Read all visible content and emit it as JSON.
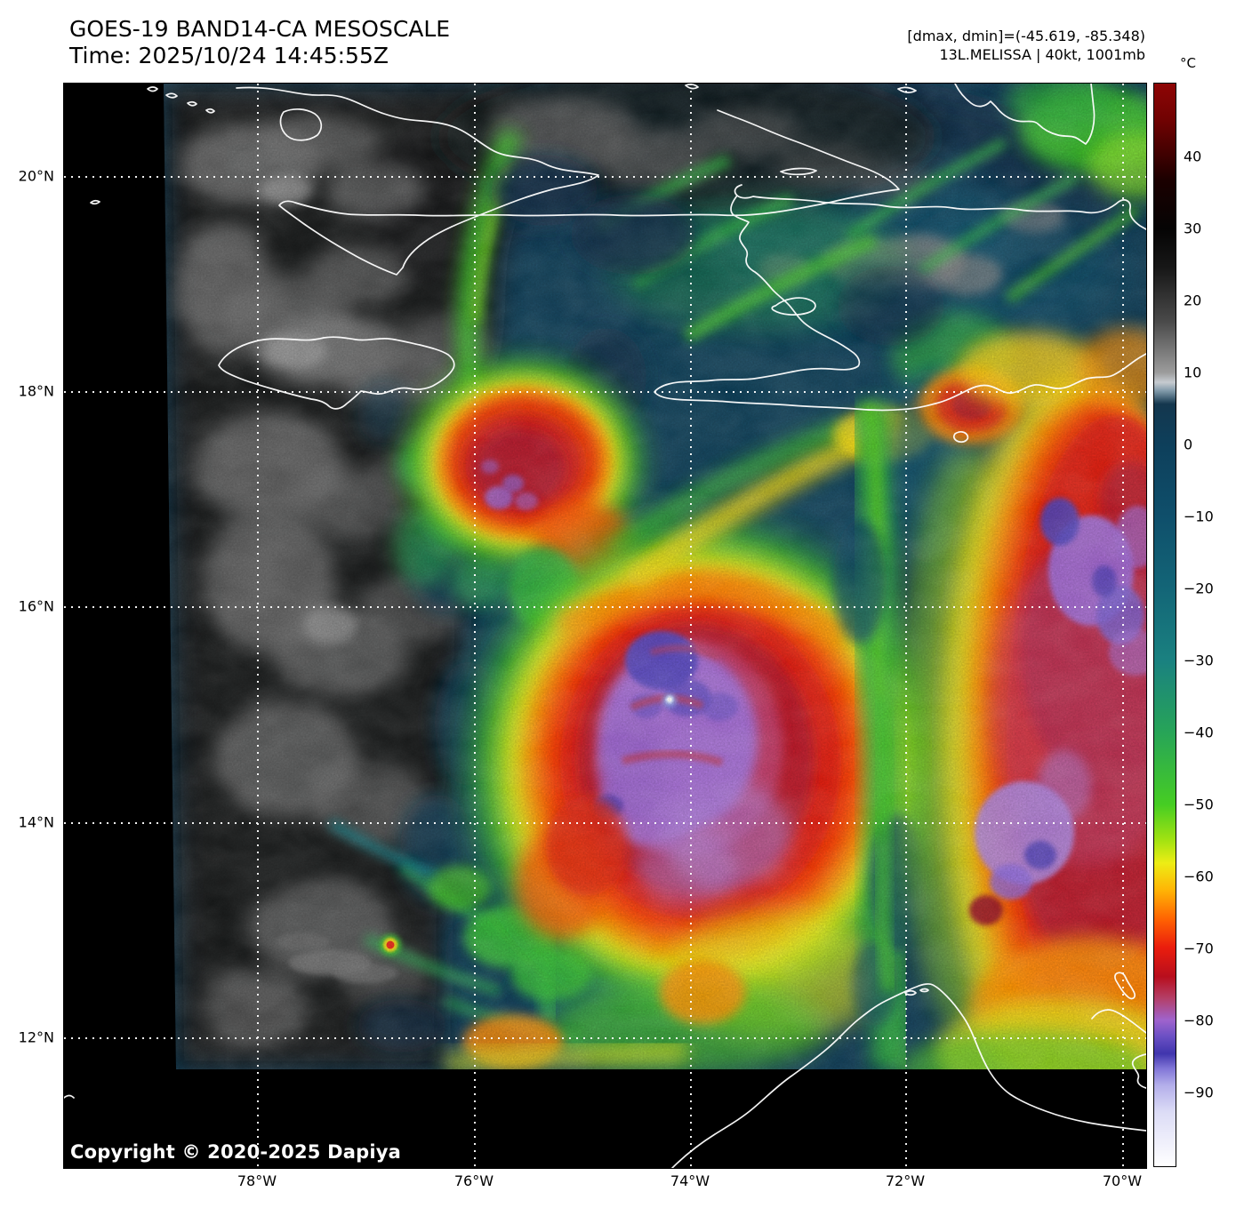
{
  "header": {
    "title_line1": "GOES-19 BAND14-CA MESOSCALE",
    "title_line2": "Time: 2025/10/24 14:45:55Z"
  },
  "info": {
    "dmax_dmin": "[dmax, dmin]=(-45.619, -85.348)",
    "storm_line": "13L.MELISSA | 40kt, 1001mb"
  },
  "colorbar": {
    "unit_label": "°C",
    "ticks": [
      {
        "label": "40",
        "top_pct": 6.8
      },
      {
        "label": "30",
        "top_pct": 13.44
      },
      {
        "label": "20",
        "top_pct": 20.08
      },
      {
        "label": "10",
        "top_pct": 26.72
      },
      {
        "label": "0",
        "top_pct": 33.36
      },
      {
        "label": "−10",
        "top_pct": 40.0
      },
      {
        "label": "−20",
        "top_pct": 46.64
      },
      {
        "label": "−30",
        "top_pct": 53.28
      },
      {
        "label": "−40",
        "top_pct": 59.92
      },
      {
        "label": "−50",
        "top_pct": 66.56
      },
      {
        "label": "−60",
        "top_pct": 73.2
      },
      {
        "label": "−70",
        "top_pct": 79.84
      },
      {
        "label": "−80",
        "top_pct": 86.48
      },
      {
        "label": "−90",
        "top_pct": 93.11
      }
    ]
  },
  "axes": {
    "lat_ticks": [
      {
        "label": "20°N",
        "top_pct": 8.61
      },
      {
        "label": "18°N",
        "top_pct": 28.44
      },
      {
        "label": "16°N",
        "top_pct": 48.28
      },
      {
        "label": "14°N",
        "top_pct": 68.2
      },
      {
        "label": "12°N",
        "top_pct": 88.03
      }
    ],
    "lon_ticks": [
      {
        "label": "78°W",
        "left_pct": 17.91
      },
      {
        "label": "76°W",
        "left_pct": 37.96
      },
      {
        "label": "74°W",
        "left_pct": 57.93
      },
      {
        "label": "72°W",
        "left_pct": 77.81
      },
      {
        "label": "70°W",
        "left_pct": 97.86
      }
    ]
  },
  "map_overlay": {
    "copyright": "Copyright © 2020-2025 Dapiya"
  },
  "palette": {
    "figure_bg": "#ffffff",
    "no_data": "#000000",
    "ocean_navy": "#0c3a54",
    "teal": "#1a8180",
    "green": "#2fae3d",
    "bright_green": "#46cd23",
    "yellow": "#eded15",
    "orange": "#ff9102",
    "red": "#e31f0e",
    "crimson": "#b5162a",
    "rose": "#c23d6d",
    "cold_purple": "#a46cd4",
    "indigo": "#5647bf",
    "coldest_white": "#e9efff",
    "coastline": "#ffffff",
    "gridline": "#ffffff",
    "warm_cloud_gray": "#6e6e6e"
  }
}
